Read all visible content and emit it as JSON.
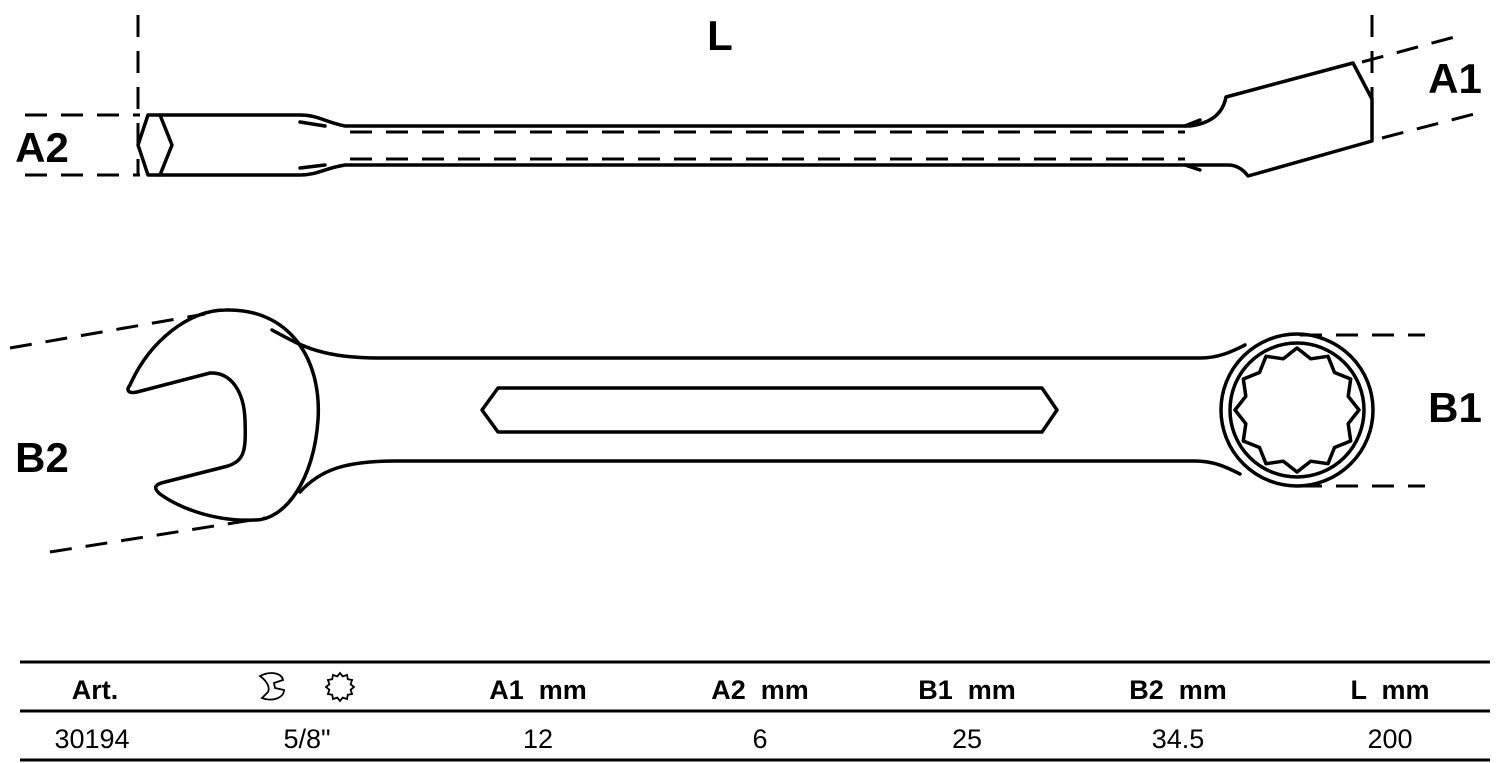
{
  "drawing": {
    "labels": {
      "L": "L",
      "A1": "A1",
      "A2": "A2",
      "B1": "B1",
      "B2": "B2"
    }
  },
  "table": {
    "headers": [
      "Art.",
      "",
      "A1  mm",
      "A2  mm",
      "B1  mm",
      "B2  mm",
      "L  mm"
    ],
    "header_icon": "open-end-and-ring-wrench-icon",
    "rows": [
      [
        "30194",
        "5/8\"",
        "12",
        "6",
        "25",
        "34.5",
        "200"
      ]
    ]
  }
}
